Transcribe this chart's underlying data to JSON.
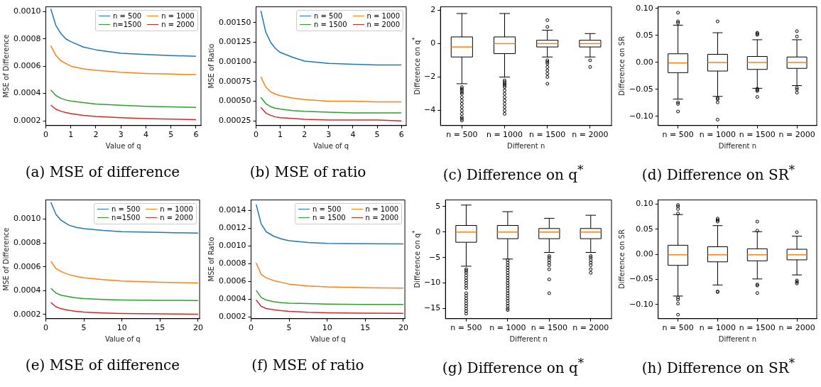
{
  "chart_data": [
    {
      "type": "line",
      "title": "(a) MSE of difference",
      "xlabel": "Value of q",
      "ylabel": "MSE of Difference",
      "legend": "top right",
      "marker": "none",
      "grid": false,
      "x": [
        0.2,
        0.4,
        0.6,
        0.8,
        1,
        1.5,
        2,
        3,
        4,
        5,
        6
      ],
      "xlim": [
        0,
        6.2
      ],
      "xticks": [
        0,
        1,
        2,
        3,
        4,
        5,
        6
      ],
      "ylim": [
        0.000165,
        0.001035
      ],
      "yticks": [
        {
          "value": 0.0002,
          "label": "0.0002"
        },
        {
          "value": 0.0004,
          "label": "0.0004"
        },
        {
          "value": 0.0006,
          "label": "0.0006"
        },
        {
          "value": 0.0008,
          "label": "0.0008"
        },
        {
          "value": 0.001,
          "label": "0.0010"
        }
      ],
      "series": [
        {
          "name": "n = 500",
          "color": "#1f77b4",
          "values": [
            0.00102,
            0.0009,
            0.00084,
            0.0008,
            0.00078,
            0.00074,
            0.00072,
            0.000695,
            0.000685,
            0.000678,
            0.000673
          ]
        },
        {
          "name": "n = 1000",
          "color": "#ff7f0e",
          "values": [
            0.00075,
            0.00068,
            0.00064,
            0.00062,
            0.0006,
            0.00058,
            0.00057,
            0.000555,
            0.000547,
            0.000542,
            0.000538
          ]
        },
        {
          "name": "n=1500",
          "color": "#2ca02c",
          "values": [
            0.000425,
            0.000385,
            0.000365,
            0.000352,
            0.000345,
            0.000333,
            0.000323,
            0.000313,
            0.000306,
            0.000302,
            0.000298
          ]
        },
        {
          "name": "n = 2000",
          "color": "#d62728",
          "values": [
            0.000315,
            0.000285,
            0.00027,
            0.00026,
            0.000252,
            0.00024,
            0.000232,
            0.000222,
            0.000216,
            0.000212,
            0.000208
          ]
        }
      ]
    },
    {
      "type": "line",
      "title": "(b) MSE of ratio",
      "xlabel": "Value of q",
      "ylabel": "MSE of Ratio",
      "legend": "top right",
      "marker": "none",
      "grid": false,
      "x": [
        0.2,
        0.4,
        0.6,
        0.8,
        1,
        1.5,
        2,
        3,
        4,
        5,
        6
      ],
      "xlim": [
        0,
        6.2
      ],
      "xticks": [
        0,
        1,
        2,
        3,
        4,
        5,
        6
      ],
      "ylim": [
        0.00019,
        0.0017
      ],
      "yticks": [
        {
          "value": 0.00025,
          "label": "0.00025"
        },
        {
          "value": 0.0005,
          "label": "0.00050"
        },
        {
          "value": 0.00075,
          "label": "0.00075"
        },
        {
          "value": 0.001,
          "label": "0.00100"
        },
        {
          "value": 0.00125,
          "label": "0.00125"
        },
        {
          "value": 0.0015,
          "label": "0.00150"
        }
      ],
      "series": [
        {
          "name": "n = 500",
          "color": "#1f77b4",
          "values": [
            0.00165,
            0.00138,
            0.00125,
            0.00117,
            0.00112,
            0.00106,
            0.00101,
            0.00098,
            0.00097,
            0.00096,
            0.00096
          ]
        },
        {
          "name": "n = 1000",
          "color": "#ff7f0e",
          "values": [
            0.00081,
            0.00068,
            0.00062,
            0.00059,
            0.00057,
            0.00054,
            0.00052,
            0.0005,
            0.0005,
            0.00049,
            0.00049
          ]
        },
        {
          "name": "n = 1500",
          "color": "#2ca02c",
          "values": [
            0.00055,
            0.00047,
            0.00043,
            0.00041,
            0.0004,
            0.00038,
            0.00037,
            0.00036,
            0.00035,
            0.00035,
            0.00035
          ]
        },
        {
          "name": "n = 2000",
          "color": "#d62728",
          "values": [
            0.00042,
            0.00035,
            0.00032,
            0.0003,
            0.00029,
            0.00028,
            0.00027,
            0.00026,
            0.00026,
            0.00026,
            0.00025
          ]
        }
      ]
    },
    {
      "type": "box",
      "title": "(c) Difference on q$^{*}$",
      "xlabel": "Different n",
      "ylabel": "Difference on q$^{*}$",
      "grid": false,
      "categories": [
        "n = 500",
        "n = 1000",
        "n = 1500",
        "n = 2000"
      ],
      "ylim": [
        -4.9,
        2.2
      ],
      "yticks": [
        {
          "value": -4,
          "label": "−4"
        },
        {
          "value": -2,
          "label": "−2"
        },
        0,
        2
      ],
      "boxes": [
        {
          "low": -2.4,
          "q1": -0.8,
          "median": -0.2,
          "q3": 0.4,
          "high": 1.8,
          "outliers": [
            -2.6,
            -2.7,
            -2.8,
            -2.9,
            -3.0,
            -3.2,
            -3.4,
            -3.6,
            -3.8,
            -4.0,
            -4.2,
            -4.4,
            -4.5,
            -4.6
          ]
        },
        {
          "low": -2.0,
          "q1": -0.6,
          "median": 0,
          "q3": 0.4,
          "high": 1.8,
          "outliers": [
            -2.2,
            -2.3,
            -2.4,
            -2.5,
            -2.6,
            -2.8,
            -3.0,
            -3.2,
            -3.4,
            -3.6,
            -3.8,
            -4.0,
            -4.2
          ]
        },
        {
          "low": -0.8,
          "q1": -0.2,
          "median": 0,
          "q3": 0.2,
          "high": 0.8,
          "outliers": [
            1.0,
            1.4,
            -1.0,
            -1.1,
            -1.2,
            -1.4,
            -1.6,
            -1.8,
            -2.0,
            -2.4
          ]
        },
        {
          "low": -0.8,
          "q1": -0.2,
          "median": 0,
          "q3": 0.2,
          "high": 0.6,
          "outliers": [
            -1.0,
            -1.4
          ]
        }
      ]
    },
    {
      "type": "box",
      "title": "(d) Difference on SR$^{*}$",
      "xlabel": "Different n",
      "ylabel": "Difference on SR",
      "grid": false,
      "categories": [
        "n = 500",
        "n = 1000",
        "n = 1500",
        "n = 2000"
      ],
      "ylim": [
        -0.117,
        0.103
      ],
      "yticks": [
        {
          "value": -0.1,
          "label": "−0.10"
        },
        {
          "value": -0.05,
          "label": "−0.05"
        },
        {
          "value": 0,
          "label": "0.00"
        },
        {
          "value": 0.05,
          "label": "0.05"
        },
        {
          "value": 0.1,
          "label": "0.10"
        }
      ],
      "boxes": [
        {
          "low": -0.068,
          "q1": -0.019,
          "median": -0.001,
          "q3": 0.016,
          "high": 0.069,
          "outliers": [
            0.073,
            0.076,
            0.092,
            -0.074,
            -0.077,
            -0.091
          ]
        },
        {
          "low": -0.063,
          "q1": -0.016,
          "median": 0,
          "q3": 0.015,
          "high": 0.055,
          "outliers": [
            0.076,
            -0.066,
            -0.068,
            -0.074,
            -0.106
          ]
        },
        {
          "low": -0.048,
          "q1": -0.013,
          "median": 0,
          "q3": 0.011,
          "high": 0.042,
          "outliers": [
            0.051,
            0.053,
            0.055,
            -0.049,
            -0.051,
            -0.053,
            -0.064
          ]
        },
        {
          "low": -0.043,
          "q1": -0.011,
          "median": 0,
          "q3": 0.01,
          "high": 0.042,
          "outliers": [
            0.048,
            0.058,
            -0.047,
            -0.05,
            -0.056
          ]
        }
      ]
    },
    {
      "type": "line",
      "title": "(e) MSE of difference",
      "xlabel": "Value of q",
      "ylabel": "MSE of Difference",
      "legend": "top right",
      "marker": "none",
      "grid": false,
      "x": [
        0.67,
        1.33,
        2,
        3,
        4,
        5,
        7.5,
        10,
        15,
        20
      ],
      "xlim": [
        0,
        20.2
      ],
      "xticks": [
        0,
        5,
        10,
        15,
        20
      ],
      "ylim": [
        0.000165,
        0.00116
      ],
      "yticks": [
        {
          "value": 0.0002,
          "label": "0.0002"
        },
        {
          "value": 0.0004,
          "label": "0.0004"
        },
        {
          "value": 0.0006,
          "label": "0.0006"
        },
        {
          "value": 0.0008,
          "label": "0.0008"
        },
        {
          "value": 0.001,
          "label": "0.0010"
        }
      ],
      "series": [
        {
          "name": "n = 500",
          "color": "#1f77b4",
          "values": [
            0.00114,
            0.00104,
            0.00099,
            0.00095,
            0.00093,
            0.00092,
            0.000905,
            0.000895,
            0.000888,
            0.000882
          ]
        },
        {
          "name": "n = 1000",
          "color": "#ff7f0e",
          "values": [
            0.000645,
            0.000585,
            0.00056,
            0.000535,
            0.00052,
            0.000508,
            0.000492,
            0.00048,
            0.00047,
            0.000465
          ]
        },
        {
          "name": "n=1500",
          "color": "#2ca02c",
          "values": [
            0.00042,
            0.00038,
            0.000362,
            0.00035,
            0.00034,
            0.000333,
            0.000326,
            0.000322,
            0.000319,
            0.000317
          ]
        },
        {
          "name": "n = 2000",
          "color": "#d62728",
          "values": [
            0.0003,
            0.000265,
            0.000248,
            0.000235,
            0.000226,
            0.00022,
            0.000213,
            0.000208,
            0.000205,
            0.000203
          ]
        }
      ]
    },
    {
      "type": "line",
      "title": "(f) MSE of ratio",
      "xlabel": "Value of q",
      "ylabel": "MSE of Ratio",
      "legend": "top right",
      "marker": "none",
      "grid": false,
      "x": [
        0.67,
        1.33,
        2,
        3,
        4,
        5,
        7.5,
        10,
        15,
        20
      ],
      "xlim": [
        0,
        20.2
      ],
      "xticks": [
        0,
        5,
        10,
        15,
        20
      ],
      "ylim": [
        0.00018,
        0.00152
      ],
      "yticks": [
        {
          "value": 0.0002,
          "label": "0.0002"
        },
        {
          "value": 0.0004,
          "label": "0.0004"
        },
        {
          "value": 0.0006,
          "label": "0.0006"
        },
        {
          "value": 0.0008,
          "label": "0.0008"
        },
        {
          "value": 0.001,
          "label": "0.0010"
        },
        {
          "value": 0.0012,
          "label": "0.0012"
        },
        {
          "value": 0.0014,
          "label": "0.0014"
        }
      ],
      "series": [
        {
          "name": "n = 500",
          "color": "#1f77b4",
          "values": [
            0.00147,
            0.00125,
            0.00116,
            0.00111,
            0.00108,
            0.00106,
            0.00104,
            0.00103,
            0.001025,
            0.001023
          ]
        },
        {
          "name": "n = 1000",
          "color": "#ff7f0e",
          "values": [
            0.00081,
            0.00068,
            0.00064,
            0.00061,
            0.00059,
            0.00057,
            0.00055,
            0.00054,
            0.00053,
            0.000525
          ]
        },
        {
          "name": "n = 1500",
          "color": "#2ca02c",
          "values": [
            0.0005,
            0.00042,
            0.00039,
            0.00037,
            0.00036,
            0.000355,
            0.00035,
            0.000345,
            0.00034,
            0.00034
          ]
        },
        {
          "name": "n = 2000",
          "color": "#d62728",
          "values": [
            0.00039,
            0.00032,
            0.000295,
            0.00028,
            0.00027,
            0.000262,
            0.000252,
            0.000247,
            0.000243,
            0.00024
          ]
        }
      ]
    },
    {
      "type": "box",
      "title": "(g) Difference on q$^{*}$",
      "xlabel": "Different n",
      "ylabel": "Difference on q$^{*}$",
      "grid": false,
      "categories": [
        "n = 500",
        "n = 1000",
        "n = 1500",
        "n = 2000"
      ],
      "ylim": [
        -17,
        6.3
      ],
      "yticks": [
        {
          "value": -15,
          "label": "−15"
        },
        {
          "value": -10,
          "label": "−10"
        },
        {
          "value": -5,
          "label": "−5"
        },
        0,
        5
      ],
      "boxes": [
        {
          "low": -6.7,
          "q1": -2,
          "median": 0,
          "q3": 1.3,
          "high": 5.3,
          "outliers": [
            -7.3,
            -7.6,
            -8,
            -8.5,
            -9,
            -9.5,
            -10,
            -10.5,
            -11,
            -12,
            -12.5,
            -13,
            -13.5,
            -14,
            -14.5,
            -15,
            -15.5,
            -16
          ]
        },
        {
          "low": -5.3,
          "q1": -1.3,
          "median": 0,
          "q3": 1.3,
          "high": 4,
          "outliers": [
            -5.5,
            -6,
            -6.5,
            -7,
            -7.5,
            -8,
            -8.5,
            -9,
            -9.5,
            -10,
            -10.5,
            -11,
            -11.5,
            -12,
            -12.5,
            -13,
            -13.5,
            -14,
            -14.5,
            -15,
            -15.3
          ]
        },
        {
          "low": -4,
          "q1": -1.3,
          "median": 0,
          "q3": 0.7,
          "high": 2.7,
          "outliers": [
            -4.7,
            -5,
            -5.5,
            -6,
            -6.5,
            -7.3,
            -9.3,
            -12
          ]
        },
        {
          "low": -4,
          "q1": -1.3,
          "median": 0,
          "q3": 0.7,
          "high": 3.3,
          "outliers": [
            -4.7,
            -5,
            -5.5,
            -6,
            -6.5,
            -7.3,
            -8
          ]
        }
      ]
    },
    {
      "type": "box",
      "title": "(h) Difference on SR$^{*}$",
      "xlabel": "Different n",
      "ylabel": "Difference on SR",
      "grid": false,
      "categories": [
        "n = 500",
        "n = 1000",
        "n = 1500",
        "n = 2000"
      ],
      "ylim": [
        -0.128,
        0.108
      ],
      "yticks": [
        {
          "value": -0.1,
          "label": "−0.10"
        },
        {
          "value": -0.05,
          "label": "−0.05"
        },
        {
          "value": 0,
          "label": "0.00"
        },
        {
          "value": 0.05,
          "label": "0.05"
        },
        {
          "value": 0.1,
          "label": "0.10"
        }
      ],
      "boxes": [
        {
          "low": -0.083,
          "q1": -0.022,
          "median": -0.001,
          "q3": 0.018,
          "high": 0.079,
          "outliers": [
            0.081,
            0.09,
            0.095,
            0.098,
            -0.086,
            -0.09,
            -0.098,
            -0.12
          ]
        },
        {
          "low": -0.061,
          "q1": -0.015,
          "median": -0.001,
          "q3": 0.015,
          "high": 0.057,
          "outliers": [
            0.065,
            0.068,
            0.071,
            -0.074,
            -0.075
          ]
        },
        {
          "low": -0.049,
          "q1": -0.013,
          "median": -0.001,
          "q3": 0.011,
          "high": 0.045,
          "outliers": [
            0.047,
            0.065,
            -0.06,
            -0.062,
            -0.077
          ]
        },
        {
          "low": -0.041,
          "q1": -0.011,
          "median": -0.001,
          "q3": 0.01,
          "high": 0.036,
          "outliers": [
            0.044,
            -0.052,
            -0.055,
            -0.058
          ]
        }
      ]
    }
  ]
}
